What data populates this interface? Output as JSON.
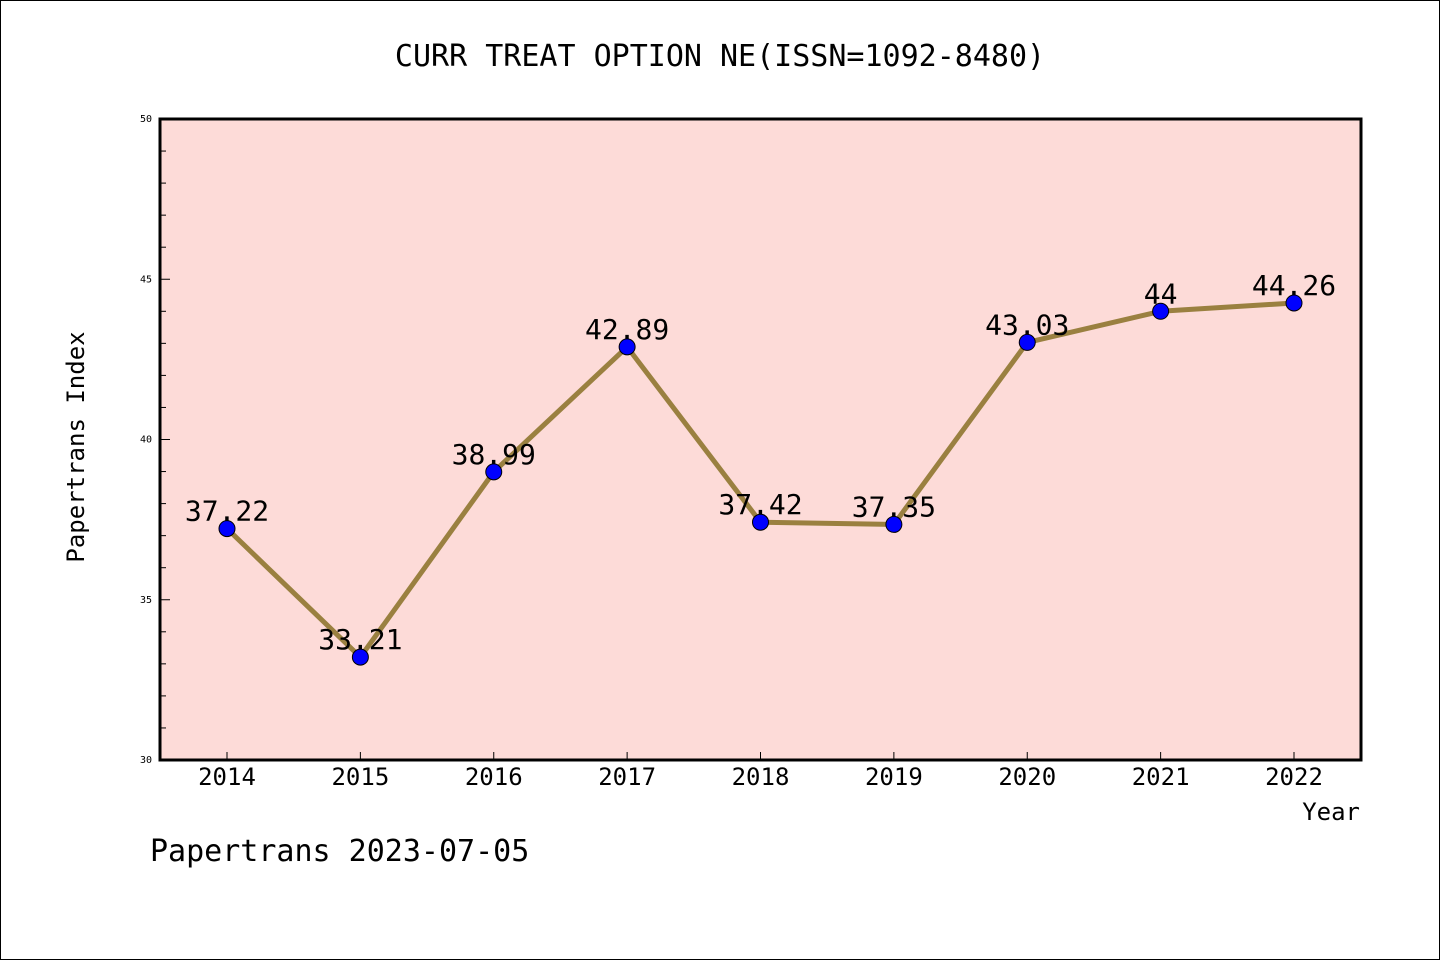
{
  "footer": "Papertrans 2023-07-05",
  "colors": {
    "plot_bg": "#fddbd8",
    "line": "#9a8040",
    "marker": "#0000ff",
    "axis": "#000000"
  },
  "chart_data": {
    "type": "line",
    "title": "CURR TREAT OPTION NE(ISSN=1092-8480)",
    "xlabel": "Year",
    "ylabel": "Papertrans Index",
    "categories": [
      "2014",
      "2015",
      "2016",
      "2017",
      "2018",
      "2019",
      "2020",
      "2021",
      "2022"
    ],
    "values": [
      37.22,
      33.21,
      38.99,
      42.89,
      37.42,
      37.35,
      43.03,
      44,
      44.26
    ],
    "labels": [
      "37.22",
      "33.21",
      "38.99",
      "42.89",
      "37.42",
      "37.35",
      "43.03",
      "44",
      "44.26"
    ],
    "ylim": [
      30,
      50
    ],
    "yticks": [
      "30",
      "35",
      "40",
      "45",
      "50"
    ],
    "grid": false,
    "legend": "none"
  }
}
